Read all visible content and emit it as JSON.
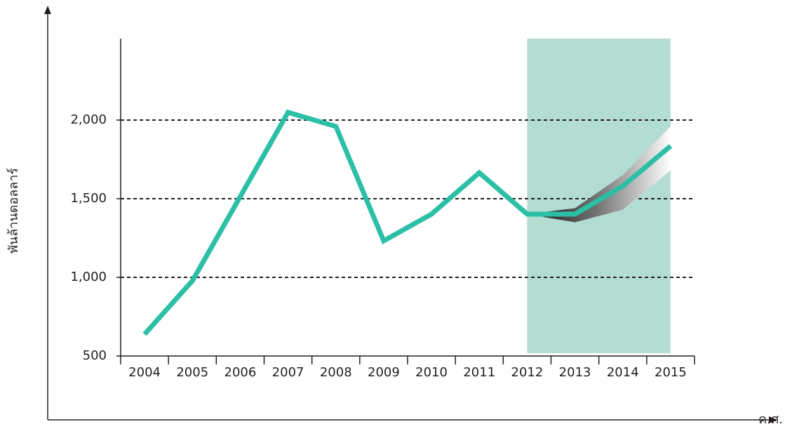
{
  "chart_data": {
    "type": "line",
    "y_label": "พันล้านดอลลาร์",
    "x_label": "ค.ศ.",
    "categories": [
      "2004",
      "2005",
      "2006",
      "2007",
      "2008",
      "2009",
      "2010",
      "2011",
      "2012",
      "2013",
      "2014",
      "2015"
    ],
    "series": [
      {
        "color": "#2bbfa6",
        "values": [
          638,
          978,
          1513,
          2049,
          1960,
          1232,
          1402,
          1665,
          1402,
          1402,
          1580,
          1835
        ]
      }
    ],
    "forecast_range": {
      "lower": [
        null,
        null,
        null,
        null,
        null,
        null,
        null,
        null,
        1402,
        1350,
        1430,
        1680
      ],
      "upper": [
        null,
        null,
        null,
        null,
        null,
        null,
        null,
        null,
        1402,
        1440,
        1650,
        1960
      ]
    },
    "highlight_categories": [
      8,
      11
    ],
    "highlight_color": "#b3ddd3",
    "ylim": [
      500,
      2500
    ],
    "yticks": [
      500,
      {
        "value": 1000,
        "label": "1,000"
      },
      {
        "value": 1500,
        "label": "1,500"
      },
      {
        "value": 2000,
        "label": "2,000"
      }
    ],
    "grid": true
  }
}
